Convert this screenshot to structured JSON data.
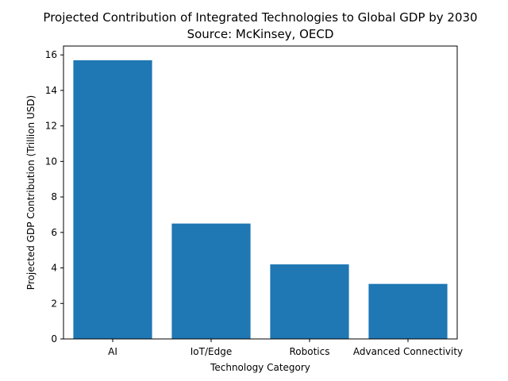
{
  "chart_data": {
    "type": "bar",
    "title": "Projected Contribution of Integrated Technologies to Global GDP by 2030",
    "subtitle": "Source: McKinsey, OECD",
    "xlabel": "Technology Category",
    "ylabel": "Projected GDP Contribution (Trillion USD)",
    "categories": [
      "AI",
      "IoT/Edge",
      "Robotics",
      "Advanced Connectivity"
    ],
    "values": [
      15.7,
      6.5,
      4.2,
      3.1
    ],
    "ylim": [
      0,
      16.5
    ],
    "yticks": [
      0,
      2,
      4,
      6,
      8,
      10,
      12,
      14,
      16
    ],
    "bar_color": "#1f77b4",
    "grid": false,
    "legend": "none"
  }
}
